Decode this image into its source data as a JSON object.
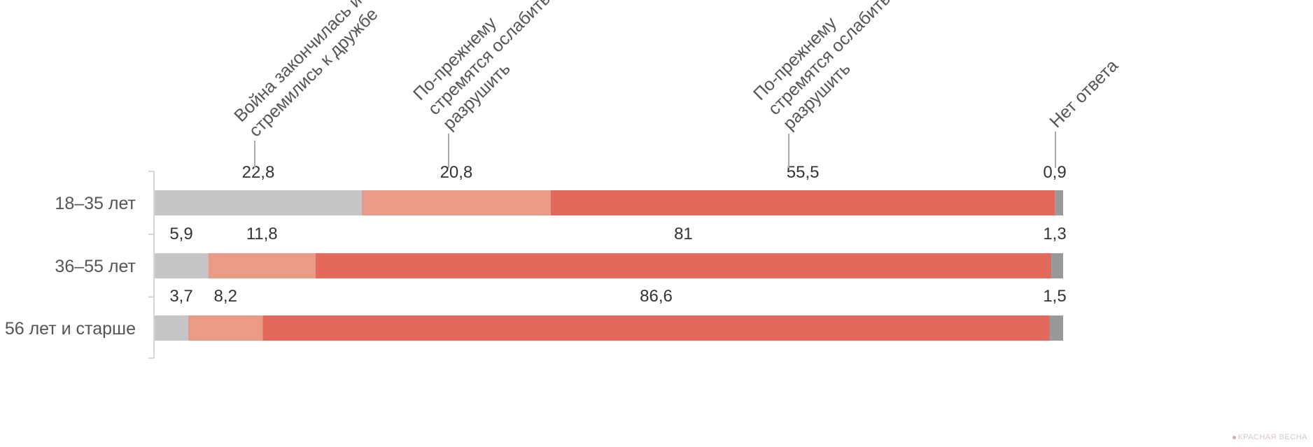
{
  "chart_data": {
    "type": "bar",
    "orientation": "horizontal",
    "stacked": true,
    "categories": [
      "18–35 лет",
      "36–55 лет",
      "56 лет и старше"
    ],
    "series": [
      {
        "name": "Война закончилась и стремились к дружбе",
        "color": "#c5c6c5",
        "values": [
          22.8,
          5.9,
          3.7
        ],
        "value_labels": [
          "22,8",
          "5,9",
          "3,7"
        ]
      },
      {
        "name": "По-прежнему стремятся ослабить и разрушить",
        "color": "#eb9a88",
        "values": [
          20.8,
          11.8,
          8.2
        ],
        "value_labels": [
          "20,8",
          "11,8",
          "8,2"
        ]
      },
      {
        "name": "По-прежнему стремятся ослабить и разрушить",
        "color": "#e2695c",
        "values": [
          55.5,
          81,
          86.6
        ],
        "value_labels": [
          "55,5",
          "81",
          "86,6"
        ]
      },
      {
        "name": "Нет ответа",
        "color": "#999999",
        "values": [
          0.9,
          1.3,
          1.5
        ],
        "value_labels": [
          "0,9",
          "1,3",
          "1,5"
        ]
      }
    ],
    "legend_position": "top, rotated labels above first row",
    "grid": false
  },
  "watermark": "КРАСНАЯ ВЕСНА"
}
